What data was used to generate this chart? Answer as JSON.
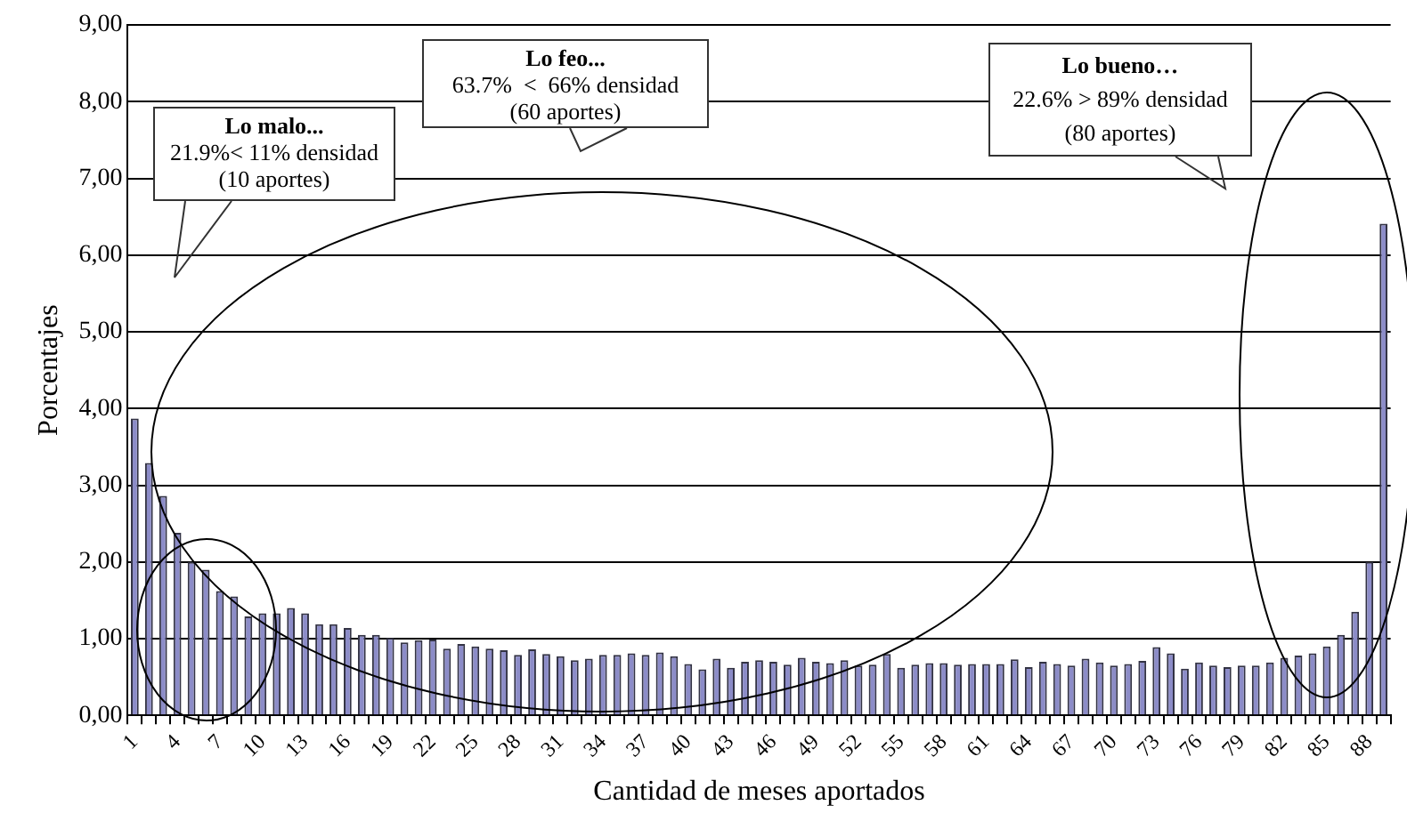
{
  "chart_data": {
    "type": "bar",
    "xlabel": "Cantidad de meses aportados",
    "ylabel": "Porcentajes",
    "categories": [
      "1",
      null,
      null,
      "4",
      null,
      null,
      "7",
      null,
      null,
      "10",
      null,
      null,
      "13",
      null,
      null,
      "16",
      null,
      null,
      "19",
      null,
      null,
      "22",
      null,
      null,
      "25",
      null,
      null,
      "28",
      null,
      null,
      "31",
      null,
      null,
      "34",
      null,
      null,
      "37",
      null,
      null,
      "40",
      null,
      null,
      "43",
      null,
      null,
      "46",
      null,
      null,
      "49",
      null,
      null,
      "52",
      null,
      null,
      "55",
      null,
      null,
      "58",
      null,
      null,
      "61",
      null,
      null,
      "64",
      null,
      null,
      "67",
      null,
      null,
      "70",
      null,
      null,
      "73",
      null,
      null,
      "76",
      null,
      null,
      "79",
      null,
      null,
      "82",
      null,
      null,
      "85",
      null,
      null,
      "88",
      null
    ],
    "values": [
      3.87,
      3.29,
      2.86,
      2.38,
      2.0,
      1.9,
      1.62,
      1.55,
      1.29,
      1.33,
      1.33,
      1.4,
      1.33,
      1.19,
      1.19,
      1.14,
      1.05,
      1.05,
      1.01,
      0.95,
      0.98,
      0.99,
      0.87,
      0.93,
      0.9,
      0.87,
      0.85,
      0.79,
      0.86,
      0.8,
      0.77,
      0.72,
      0.74,
      0.79,
      0.79,
      0.81,
      0.79,
      0.82,
      0.77,
      0.67,
      0.6,
      0.74,
      0.62,
      0.7,
      0.72,
      0.7,
      0.66,
      0.75,
      0.7,
      0.68,
      0.72,
      0.65,
      0.66,
      0.8,
      0.62,
      0.66,
      0.68,
      0.68,
      0.66,
      0.67,
      0.67,
      0.67,
      0.73,
      0.63,
      0.7,
      0.67,
      0.65,
      0.74,
      0.69,
      0.65,
      0.67,
      0.71,
      0.89,
      0.81,
      0.61,
      0.69,
      0.65,
      0.63,
      0.65,
      0.65,
      0.69,
      0.75,
      0.78,
      0.81,
      0.9,
      1.05,
      1.35,
      2.0,
      6.41
    ],
    "color": "#8c8cc8",
    "ylim": [
      0,
      9
    ],
    "yticks": [
      {
        "value": 0,
        "label": "0,00"
      },
      {
        "value": 1,
        "label": "1,00"
      },
      {
        "value": 2,
        "label": "2,00"
      },
      {
        "value": 3,
        "label": "3,00"
      },
      {
        "value": 4,
        "label": "4,00"
      },
      {
        "value": 5,
        "label": "5,00"
      },
      {
        "value": 6,
        "label": "6,00"
      },
      {
        "value": 7,
        "label": "7,00"
      },
      {
        "value": 8,
        "label": "8,00"
      },
      {
        "value": 9,
        "label": "9,00"
      }
    ],
    "grid": "y",
    "annotations": [
      "Lo malo...",
      "21.9%< 11% densidad",
      "(10 aportes)",
      "Lo feo...",
      "63.7%  <  66% densidad",
      "(60 aportes)",
      "Lo bueno…",
      "22.6% > 89% densidad",
      "(80 aportes)"
    ]
  }
}
